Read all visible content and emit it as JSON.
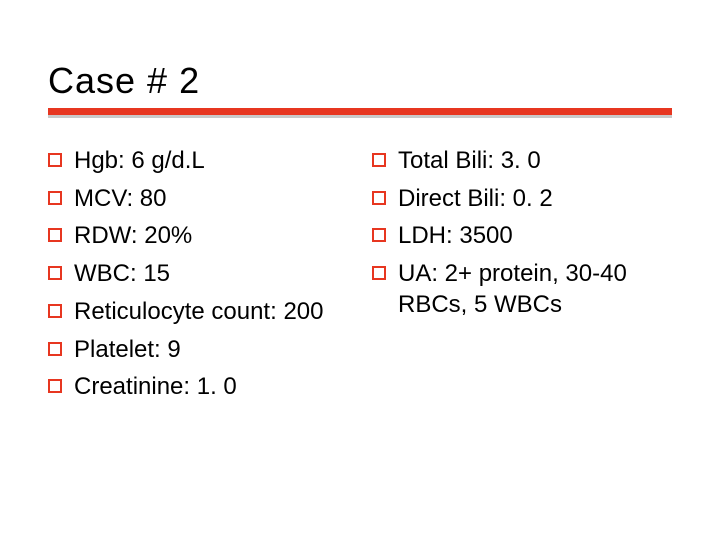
{
  "title": "Case # 2",
  "divider": {
    "primary_color": "#e73620",
    "secondary_color": "#c9c9c9",
    "primary_height": 7,
    "secondary_height": 3
  },
  "bullet_style": {
    "border_color": "#e73620",
    "size": 14,
    "border_width": 2
  },
  "typography": {
    "title_fontsize": 36,
    "item_fontsize": 24,
    "font_family": "Verdana",
    "text_color": "#000000"
  },
  "background_color": "#ffffff",
  "columns": {
    "left": [
      "Hgb: 6 g/d.L",
      "MCV: 80",
      "RDW: 20%",
      "WBC: 15",
      "Reticulocyte count: 200",
      "Platelet: 9",
      "Creatinine: 1. 0"
    ],
    "right": [
      "Total Bili: 3. 0",
      "Direct Bili: 0. 2",
      "LDH: 3500",
      "UA: 2+ protein, 30-40 RBCs, 5 WBCs"
    ]
  }
}
